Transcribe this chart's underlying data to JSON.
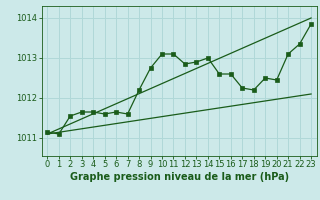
{
  "bg_color": "#cce9e9",
  "line_color": "#1a5c1a",
  "grid_color": "#b0d8d8",
  "xlabel": "Graphe pression niveau de la mer (hPa)",
  "xlim": [
    -0.5,
    23.5
  ],
  "ylim": [
    1010.55,
    1014.3
  ],
  "yticks": [
    1011,
    1012,
    1013,
    1014
  ],
  "xticks": [
    0,
    1,
    2,
    3,
    4,
    5,
    6,
    7,
    8,
    9,
    10,
    11,
    12,
    13,
    14,
    15,
    16,
    17,
    18,
    19,
    20,
    21,
    22,
    23
  ],
  "main_line_x": [
    0,
    1,
    2,
    3,
    4,
    5,
    6,
    7,
    8,
    9,
    10,
    11,
    12,
    13,
    14,
    15,
    16,
    17,
    18,
    19,
    20,
    21,
    22,
    23
  ],
  "main_line_y": [
    1011.15,
    1011.1,
    1011.55,
    1011.65,
    1011.65,
    1011.6,
    1011.65,
    1011.6,
    1012.2,
    1012.75,
    1013.1,
    1013.1,
    1012.85,
    1012.9,
    1013.0,
    1012.6,
    1012.6,
    1012.25,
    1012.2,
    1012.5,
    1012.45,
    1013.1,
    1013.35,
    1013.85
  ],
  "line2_x": [
    0,
    23
  ],
  "line2_y": [
    1011.1,
    1014.0
  ],
  "line3_x": [
    0,
    23
  ],
  "line3_y": [
    1011.1,
    1012.1
  ],
  "xlabel_fontsize": 7,
  "tick_fontsize": 6
}
